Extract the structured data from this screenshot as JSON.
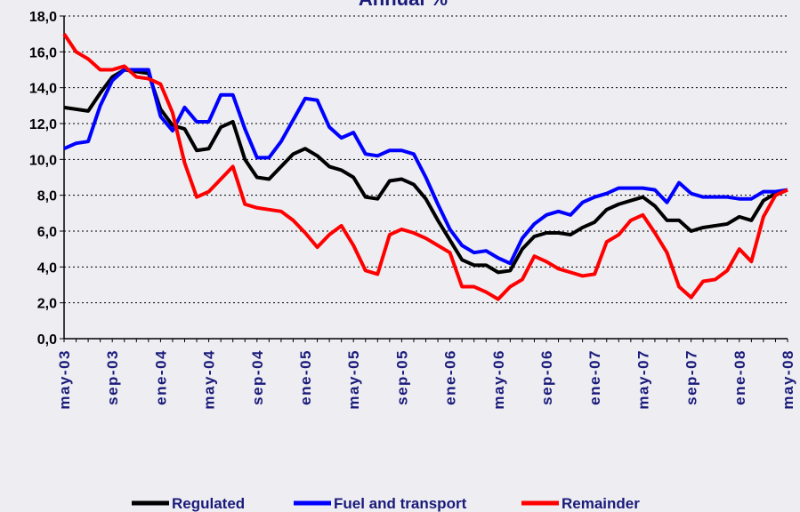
{
  "chart_data": {
    "type": "line",
    "title": "Annual %",
    "categories": [
      "may-03",
      null,
      null,
      null,
      "sep-03",
      null,
      null,
      null,
      "ene-04",
      null,
      null,
      null,
      "may-04",
      null,
      null,
      null,
      "sep-04",
      null,
      null,
      null,
      "ene-05",
      null,
      null,
      null,
      "may-05",
      null,
      null,
      null,
      "sep-05",
      null,
      null,
      null,
      "ene-06",
      null,
      null,
      null,
      "may-06",
      null,
      null,
      null,
      "sep-06",
      null,
      null,
      null,
      "ene-07",
      null,
      null,
      null,
      "may-07",
      null,
      null,
      null,
      "sep-07",
      null,
      null,
      null,
      "ene-08",
      null,
      null,
      null,
      "may-08"
    ],
    "series": [
      {
        "name": "Regulated",
        "color": "#000000",
        "values": [
          12.9,
          12.8,
          12.7,
          13.7,
          14.6,
          15.0,
          14.9,
          14.8,
          12.8,
          11.9,
          11.7,
          10.5,
          10.6,
          11.8,
          12.1,
          10.0,
          9.0,
          8.9,
          9.6,
          10.3,
          10.6,
          10.2,
          9.6,
          9.4,
          9.0,
          7.9,
          7.8,
          8.8,
          8.9,
          8.6,
          7.8,
          6.6,
          5.5,
          4.4,
          4.1,
          4.1,
          3.7,
          3.8,
          5.0,
          5.7,
          5.9,
          5.9,
          5.8,
          6.2,
          6.5,
          7.2,
          7.5,
          7.7,
          7.9,
          7.4,
          6.6,
          6.6,
          6.0,
          6.2,
          6.3,
          6.4,
          6.8,
          6.6,
          7.7,
          8.1,
          8.3
        ]
      },
      {
        "name": "Fuel and transport",
        "color": "#0000ff",
        "values": [
          10.6,
          10.9,
          11.0,
          13.0,
          14.4,
          15.0,
          15.0,
          15.0,
          12.4,
          11.6,
          12.9,
          12.1,
          12.1,
          13.6,
          13.6,
          11.7,
          10.1,
          10.1,
          11.0,
          12.2,
          13.4,
          13.3,
          11.8,
          11.2,
          11.5,
          10.3,
          10.2,
          10.5,
          10.5,
          10.3,
          9.0,
          7.5,
          6.1,
          5.2,
          4.8,
          4.9,
          4.5,
          4.2,
          5.6,
          6.4,
          6.9,
          7.1,
          6.9,
          7.6,
          7.9,
          8.1,
          8.4,
          8.4,
          8.4,
          8.3,
          7.6,
          8.7,
          8.1,
          7.9,
          7.9,
          7.9,
          7.8,
          7.8,
          8.2,
          8.2,
          8.3
        ]
      },
      {
        "name": "Remainder",
        "color": "#ff0000",
        "values": [
          17.0,
          16.0,
          15.6,
          15.0,
          15.0,
          15.2,
          14.6,
          14.5,
          14.2,
          12.6,
          9.8,
          7.9,
          8.2,
          8.9,
          9.6,
          7.5,
          7.3,
          7.2,
          7.1,
          6.6,
          5.9,
          5.1,
          5.8,
          6.3,
          5.2,
          3.8,
          3.6,
          5.8,
          6.1,
          5.9,
          5.6,
          5.2,
          4.8,
          2.9,
          2.9,
          2.6,
          2.2,
          2.9,
          3.3,
          4.6,
          4.3,
          3.9,
          3.7,
          3.5,
          3.6,
          5.4,
          5.8,
          6.6,
          6.9,
          5.9,
          4.8,
          2.9,
          2.3,
          3.2,
          3.3,
          3.8,
          5.0,
          4.3,
          6.8,
          8.0,
          8.3
        ]
      }
    ],
    "ylim": [
      0,
      18
    ],
    "yticks": [
      {
        "value": 0,
        "label": "0,0"
      },
      {
        "value": 2,
        "label": "2,0"
      },
      {
        "value": 4,
        "label": "4,0"
      },
      {
        "value": 6,
        "label": "6,0"
      },
      {
        "value": 8,
        "label": "8,0"
      },
      {
        "value": 10,
        "label": "10,0"
      },
      {
        "value": 12,
        "label": "12,0"
      },
      {
        "value": 14,
        "label": "14,0"
      },
      {
        "value": 16,
        "label": "16,0"
      },
      {
        "value": 18,
        "label": "18,0"
      }
    ],
    "grid": true
  }
}
